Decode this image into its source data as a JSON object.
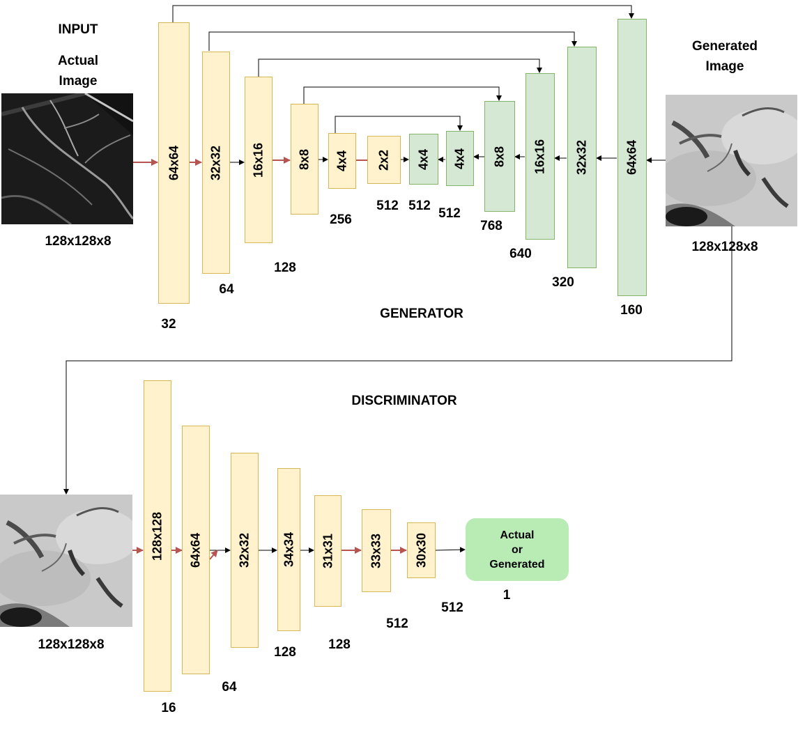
{
  "labels": {
    "input": "INPUT",
    "actual_image_1": "Actual",
    "actual_image_2": "Image",
    "generated_image_1": "Generated",
    "generated_image_2": "Image",
    "input_dims": "128x128x8",
    "generated_dims": "128x128x8",
    "disc_input_dims": "128x128x8",
    "generator": "GENERATOR",
    "discriminator": "DISCRIMINATOR"
  },
  "generator": {
    "encoder": [
      {
        "size": "64x64",
        "channels": "32"
      },
      {
        "size": "32x32",
        "channels": "64"
      },
      {
        "size": "16x16",
        "channels": "128"
      },
      {
        "size": "8x8",
        "channels": "256"
      },
      {
        "size": "4x4",
        "channels": ""
      },
      {
        "size": "2x2",
        "channels": "512"
      }
    ],
    "decoder": [
      {
        "size": "4x4",
        "channels": "512"
      },
      {
        "size": "4x4",
        "channels": "512"
      },
      {
        "size": "8x8",
        "channels": "768"
      },
      {
        "size": "16x16",
        "channels": "640"
      },
      {
        "size": "32x32",
        "channels": "320"
      },
      {
        "size": "64x64",
        "channels": "160"
      }
    ]
  },
  "discriminator": {
    "layers": [
      {
        "size": "128x128",
        "channels": "16"
      },
      {
        "size": "64x64",
        "channels": "64"
      },
      {
        "size": "32x32",
        "channels": ""
      },
      {
        "size": "34x34",
        "channels": "128"
      },
      {
        "size": "31x31",
        "channels": "128"
      },
      {
        "size": "33x33",
        "channels": "512"
      },
      {
        "size": "30x30",
        "channels": "512"
      }
    ],
    "output": {
      "line1": "Actual",
      "line2": "or",
      "line3": "Generated",
      "value": "1"
    }
  },
  "colors": {
    "encoder_fill": "#fff2cc",
    "encoder_border": "#d6b656",
    "decoder_fill": "#d5e8d4",
    "decoder_border": "#82b366",
    "output_fill": "#b9ebb5",
    "arrow_red": "#b85450",
    "arrow_black": "#000000"
  }
}
